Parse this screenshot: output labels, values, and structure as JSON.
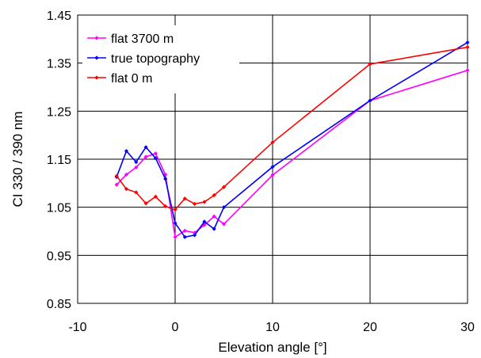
{
  "chart_data": {
    "type": "line",
    "title": "",
    "xlabel": "Elevation angle [°]",
    "ylabel": "CI 330 / 390 nm",
    "xlim": [
      -10,
      30
    ],
    "ylim": [
      0.85,
      1.45
    ],
    "xticks": [
      -10,
      0,
      10,
      20,
      30
    ],
    "yticks": [
      0.85,
      0.95,
      1.05,
      1.15,
      1.25,
      1.35,
      1.45
    ],
    "xtick_labels": [
      "-10",
      "0",
      "10",
      "20",
      "30"
    ],
    "ytick_labels": [
      "0.85",
      "0.95",
      "1.05",
      "1.15",
      "1.25",
      "1.35",
      "1.45"
    ],
    "grid": true,
    "legend_position": "top-left",
    "series": [
      {
        "name": "flat 3700 m",
        "color": "#ff00ff",
        "x": [
          -6,
          -5,
          -4,
          -3,
          -2,
          -1,
          0,
          1,
          2,
          3,
          4,
          5,
          10,
          20,
          30
        ],
        "y": [
          1.097,
          1.118,
          1.133,
          1.155,
          1.162,
          1.118,
          0.988,
          1.001,
          0.997,
          1.013,
          1.031,
          1.015,
          1.117,
          1.272,
          1.335
        ]
      },
      {
        "name": "true topography",
        "color": "#0000ff",
        "x": [
          -6,
          -5,
          -4,
          -3,
          -2,
          -1,
          0,
          1,
          2,
          3,
          4,
          5,
          10,
          20,
          30
        ],
        "y": [
          1.113,
          1.167,
          1.144,
          1.175,
          1.152,
          1.109,
          1.017,
          0.988,
          0.992,
          1.02,
          1.005,
          1.05,
          1.134,
          1.272,
          1.393
        ]
      },
      {
        "name": "flat 0 m",
        "color": "#ff0000",
        "x": [
          -6,
          -5,
          -4,
          -3,
          -2,
          -1,
          0,
          1,
          2,
          3,
          4,
          5,
          10,
          20,
          30
        ],
        "y": [
          1.115,
          1.088,
          1.081,
          1.058,
          1.072,
          1.052,
          1.045,
          1.068,
          1.057,
          1.061,
          1.075,
          1.092,
          1.185,
          1.348,
          1.383
        ]
      }
    ]
  }
}
